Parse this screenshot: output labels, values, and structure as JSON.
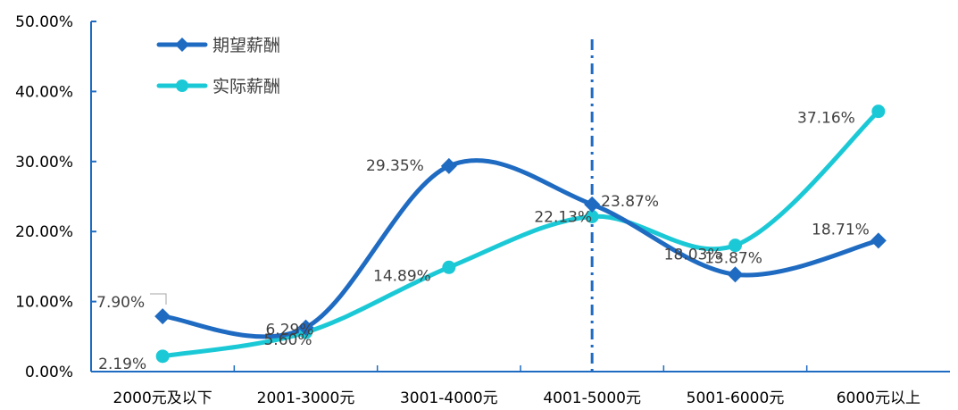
{
  "chart_data": {
    "type": "line",
    "smooth": true,
    "categories": [
      "2000元及以下",
      "2001-3000元",
      "3001-4000元",
      "4001-5000元",
      "5001-6000元",
      "6000元以上"
    ],
    "ylim": [
      0,
      50
    ],
    "yticks": [
      "0.00%",
      "10.00%",
      "20.00%",
      "30.00%",
      "40.00%",
      "50.00%"
    ],
    "legend_position": "top-left",
    "grid": false,
    "reference_line": {
      "category": "4001-5000元",
      "style": "dash-dot"
    },
    "series": [
      {
        "name": "期望薪酬",
        "color": "#1F6BC2",
        "marker": "diamond",
        "values": [
          7.9,
          6.29,
          29.35,
          23.87,
          13.87,
          18.71
        ],
        "labels": [
          "7.90%",
          "6.29%",
          "29.35%",
          "23.87%",
          "13.87%",
          "18.71%"
        ]
      },
      {
        "name": "实际薪酬",
        "color": "#1BC9D6",
        "marker": "circle",
        "values": [
          2.19,
          5.6,
          14.89,
          22.13,
          18.03,
          37.16
        ],
        "labels": [
          "2.19%",
          "5.60%",
          "14.89%",
          "22.13%",
          "18.03%",
          "37.16%"
        ]
      }
    ]
  }
}
